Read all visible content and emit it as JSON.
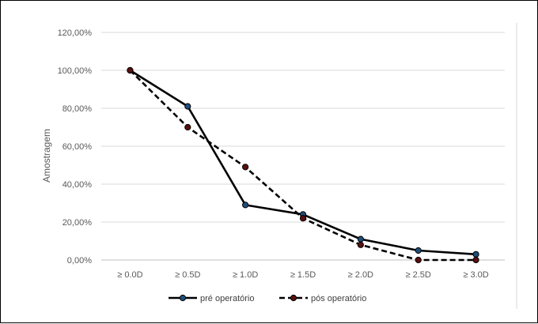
{
  "chart_data": {
    "type": "line",
    "title": "",
    "xlabel": "",
    "ylabel": "Amostragem",
    "categories": [
      "≥ 0.0D",
      "≥ 0.5D",
      "≥ 1.0D",
      "≥ 1.5D",
      "≥ 2.0D",
      "≥ 2.5D",
      "≥ 3.0D"
    ],
    "y_ticks": [
      "0,00%",
      "20,00%",
      "40,00%",
      "60,00%",
      "80,00%",
      "100,00%",
      "120,00%"
    ],
    "ylim": [
      0,
      120
    ],
    "grid": true,
    "legend_position": "bottom",
    "series": [
      {
        "name": "pré operatório",
        "values": [
          100,
          81,
          29,
          24,
          11,
          5,
          3
        ],
        "line_color": "#000000",
        "line_style": "solid",
        "marker_color": "#1f4e79"
      },
      {
        "name": "pós operatório",
        "values": [
          100,
          70,
          49,
          22,
          8,
          0,
          0
        ],
        "line_color": "#000000",
        "line_style": "dashed",
        "marker_color": "#5a0f0f"
      }
    ]
  }
}
